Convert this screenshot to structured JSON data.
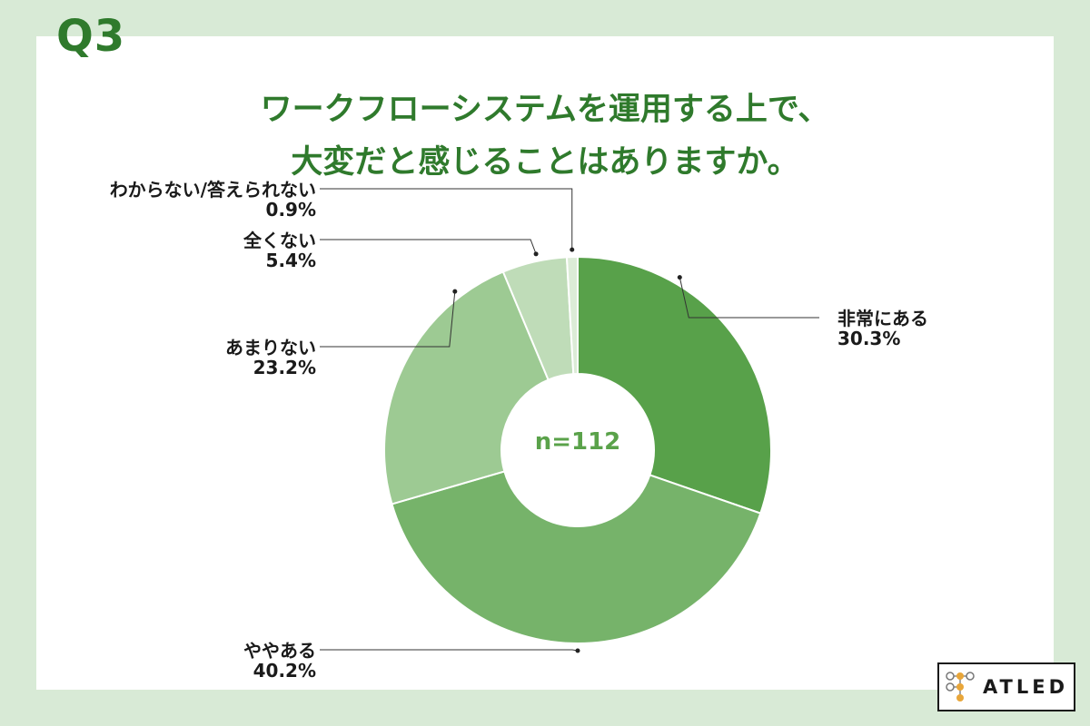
{
  "question_label": "Q3",
  "title_lines": [
    "ワークフローシステムを運用する上で、",
    "大変だと感じることはありますか。"
  ],
  "brand": {
    "logo_text": "ATLED"
  },
  "colors": {
    "background": "#d8ead6",
    "accent": "#2f7a2c"
  },
  "chart_data": {
    "type": "pie",
    "donut": true,
    "center_label": "n=112",
    "slices": [
      {
        "label": "非常にある",
        "value": 30.3,
        "value_label": "30.3%",
        "color": "#58a14a",
        "side": "right"
      },
      {
        "label": "ややある",
        "value": 40.2,
        "value_label": "40.2%",
        "color": "#76b36a",
        "side": "left"
      },
      {
        "label": "あまりない",
        "value": 23.2,
        "value_label": "23.2%",
        "color": "#9dca93",
        "side": "left"
      },
      {
        "label": "全くない",
        "value": 5.4,
        "value_label": "5.4%",
        "color": "#bfdcb8",
        "side": "left"
      },
      {
        "label": "わからない/答えられない",
        "value": 0.9,
        "value_label": "0.9%",
        "color": "#dcecd7",
        "side": "left"
      }
    ]
  }
}
